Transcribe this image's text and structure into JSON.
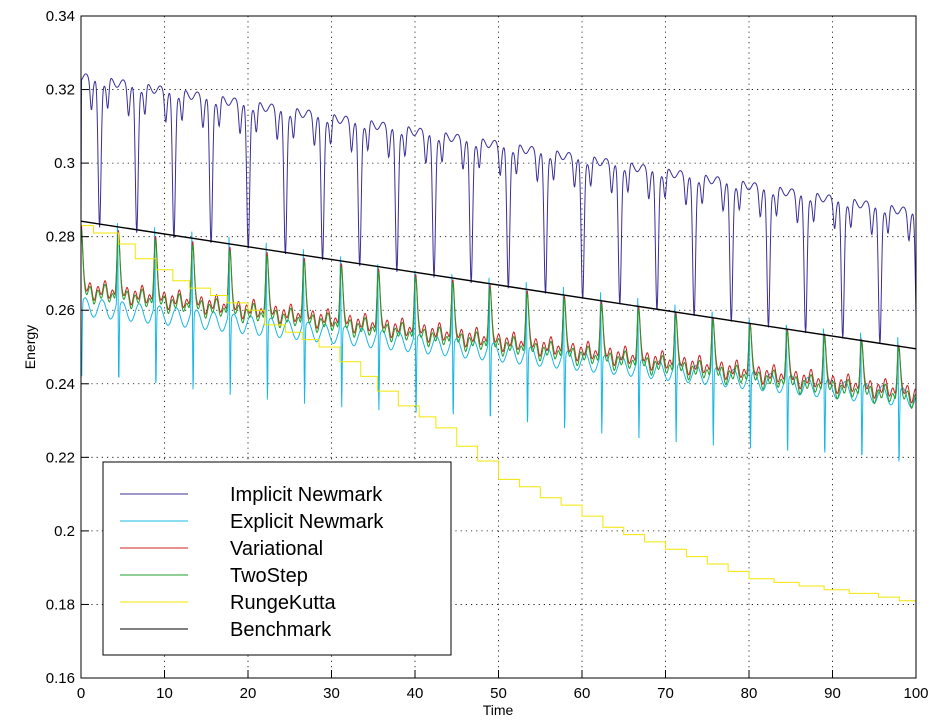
{
  "chart_data": {
    "type": "line",
    "xlabel": "Time",
    "ylabel": "Energy",
    "xlim": [
      0,
      100
    ],
    "ylim": [
      0.16,
      0.34
    ],
    "xticks": [
      0,
      10,
      20,
      30,
      40,
      50,
      60,
      70,
      80,
      90,
      100
    ],
    "yticks": [
      0.16,
      0.18,
      0.2,
      0.22,
      0.24,
      0.26,
      0.28,
      0.3,
      0.32,
      0.34
    ],
    "x_tick_labels": [
      "0",
      "10",
      "20",
      "30",
      "40",
      "50",
      "60",
      "70",
      "80",
      "90",
      "100"
    ],
    "y_tick_labels": [
      "0.16",
      "0.18",
      "0.2",
      "0.22",
      "0.24",
      "0.26",
      "0.28",
      "0.3",
      "0.32",
      "0.34"
    ],
    "grid": true,
    "legend_position": "bottom-left",
    "series": [
      {
        "name": "Implicit Newmark",
        "color": "#3b2f98",
        "pattern": "oscillating-dip",
        "period": 4.45,
        "x": [
          0,
          100
        ],
        "upper": [
          0.3245,
          0.2875
        ],
        "lower": [
          0.2835,
          0.2495
        ],
        "start_value": 0.284
      },
      {
        "name": "Explicit Newmark",
        "color": "#18b8e6",
        "pattern": "oscillating-spike",
        "period": 4.45,
        "x": [
          0,
          100
        ],
        "base": [
          0.261,
          0.236
        ],
        "peak": [
          0.285,
          0.251
        ],
        "trough": [
          0.239,
          0.216
        ]
      },
      {
        "name": "Variational",
        "color": "#cc2222",
        "pattern": "oscillating-peak",
        "period": 4.45,
        "x": [
          0,
          100
        ],
        "base": [
          0.266,
          0.2375
        ],
        "peak": [
          0.283,
          0.2495
        ]
      },
      {
        "name": "TwoStep",
        "color": "#1f9f2a",
        "pattern": "oscillating-peak",
        "period": 4.45,
        "x": [
          0,
          100
        ],
        "base": [
          0.265,
          0.236
        ],
        "peak": [
          0.282,
          0.249
        ]
      },
      {
        "name": "RungeKutta",
        "color": "#f2e600",
        "pattern": "step",
        "x": [
          0,
          1.5,
          4.5,
          6.5,
          9,
          11,
          13,
          15.5,
          17.5,
          20,
          22,
          24.5,
          26.5,
          28.5,
          31,
          33.5,
          35.5,
          38,
          40.5,
          42.5,
          45,
          47.5,
          50,
          52.5,
          55,
          57.5,
          60,
          62.5,
          65,
          67.5,
          70,
          72.5,
          75,
          77.5,
          80,
          83,
          86,
          89,
          92,
          95.5,
          98,
          100
        ],
        "y": [
          0.283,
          0.281,
          0.278,
          0.274,
          0.271,
          0.268,
          0.266,
          0.264,
          0.262,
          0.26,
          0.256,
          0.254,
          0.252,
          0.25,
          0.246,
          0.242,
          0.238,
          0.234,
          0.231,
          0.228,
          0.223,
          0.219,
          0.214,
          0.212,
          0.209,
          0.207,
          0.204,
          0.201,
          0.199,
          0.197,
          0.195,
          0.193,
          0.191,
          0.189,
          0.187,
          0.186,
          0.185,
          0.184,
          0.183,
          0.182,
          0.181,
          0.178
        ]
      },
      {
        "name": "Benchmark",
        "color": "#000000",
        "pattern": "line",
        "x": [
          0,
          100
        ],
        "y": [
          0.2842,
          0.2495
        ]
      }
    ]
  }
}
